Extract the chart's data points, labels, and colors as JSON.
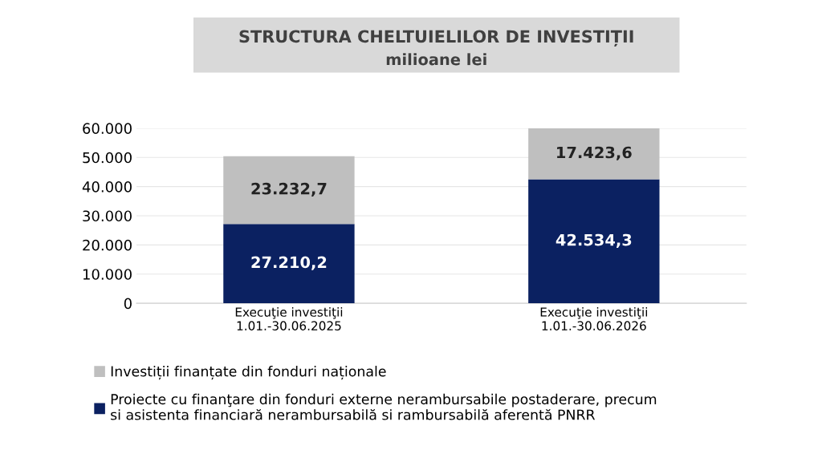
{
  "chart_data": {
    "type": "bar",
    "stacked": true,
    "title": "STRUCTURA CHELTUIELILOR DE INVESTIȚII",
    "subtitle": "milioane lei",
    "categories": [
      "Execuţie investiţii\n1.01.-30.06.2025",
      "Execuţie investiţii\n1.01.-30.06.2026"
    ],
    "series": [
      {
        "name": "Proiecte cu finanţare din fonduri externe nerambursabile postaderare, precum\nsi asistenta financiară nerambursabilă si rambursabilă aferentă PNRR",
        "color": "#0b2161",
        "values": [
          27210.2,
          42534.3
        ],
        "value_labels": [
          "27.210,2",
          "42.534,3"
        ]
      },
      {
        "name": "Investiții finanțate din fonduri naționale",
        "color": "#bfbfbf",
        "values": [
          23232.7,
          17423.6
        ],
        "value_labels": [
          "23.232,7",
          "17.423,6"
        ]
      }
    ],
    "ylim": [
      0,
      60000
    ],
    "yticks": [
      {
        "value": 0,
        "label": "0"
      },
      {
        "value": 10000,
        "label": "10.000"
      },
      {
        "value": 20000,
        "label": "20.000"
      },
      {
        "value": 30000,
        "label": "30.000"
      },
      {
        "value": 40000,
        "label": "40.000"
      },
      {
        "value": 50000,
        "label": "50.000"
      },
      {
        "value": 60000,
        "label": "60.000"
      }
    ],
    "grid": "y",
    "legend": "bottom"
  }
}
